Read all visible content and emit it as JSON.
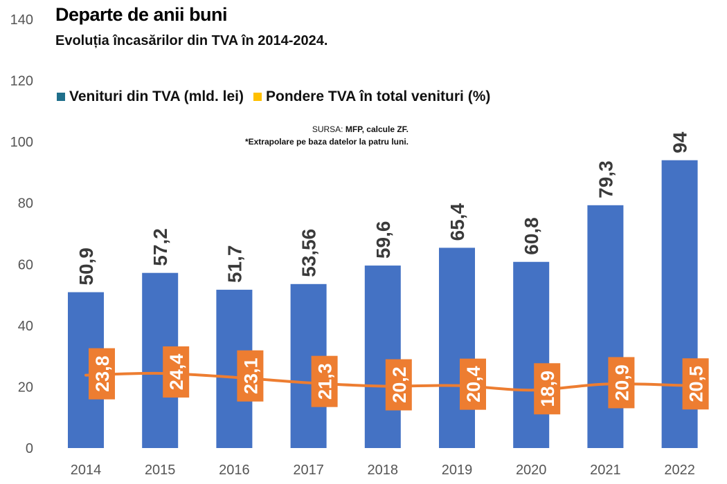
{
  "title": "Departe de anii buni",
  "subtitle": "Evoluția încasărilor din TVA în 2014-2024.",
  "legend": {
    "series1": "Venituri din TVA (mld. lei)",
    "series2": "Pondere TVA în total venituri (%)"
  },
  "source": {
    "prefix": "SURSA: ",
    "value": "MFP, calcule ZF.",
    "note": "*Extrapolare pe baza datelor la patru luni."
  },
  "colors": {
    "bars": "#4472c4",
    "line": "#ed7d31",
    "label_box": "#ed7d31",
    "bar_label": "#3a3a3a",
    "axis_text": "#555555",
    "legend_bar_swatch": "#1f6f8b",
    "legend_line_swatch": "#ffc000"
  },
  "chart_data": {
    "type": "bar",
    "categories": [
      "2014",
      "2015",
      "2016",
      "2017",
      "2018",
      "2019",
      "2020",
      "2021",
      "2022"
    ],
    "series": [
      {
        "name": "Venituri din TVA (mld. lei)",
        "type": "bar",
        "values": [
          50.9,
          57.2,
          51.7,
          53.56,
          59.6,
          65.4,
          60.8,
          79.3,
          94
        ],
        "labels": [
          "50,9",
          "57,2",
          "51,7",
          "53,56",
          "59,6",
          "65,4",
          "60,8",
          "79,3",
          "94"
        ]
      },
      {
        "name": "Pondere TVA în total venituri (%)",
        "type": "line",
        "values": [
          23.8,
          24.4,
          23.1,
          21.3,
          20.2,
          20.4,
          18.9,
          20.9,
          20.5
        ],
        "labels": [
          "23,8",
          "24,4",
          "23,1",
          "21,3",
          "20,2",
          "20,4",
          "18,9",
          "20,9",
          "20,5"
        ]
      }
    ],
    "ylim": [
      0,
      140
    ],
    "yticks": [
      0,
      20,
      40,
      60,
      80,
      100,
      120,
      140
    ],
    "ytick_labels": [
      "0",
      "20",
      "40",
      "60",
      "80",
      "100",
      "120",
      "140"
    ],
    "grid": false,
    "legend_position": "top-left"
  }
}
